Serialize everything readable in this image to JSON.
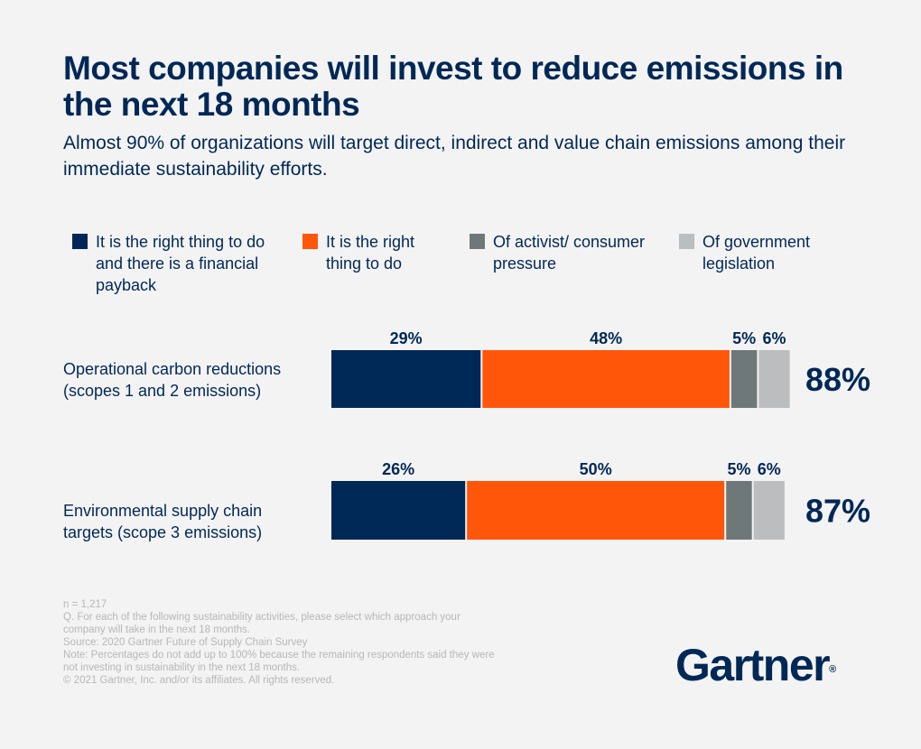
{
  "header": {
    "title": "Most companies will invest to reduce emissions in the next 18 months",
    "subtitle": "Almost 90% of organizations will target direct, indirect and value chain emissions among their immediate sustainability efforts."
  },
  "chart_data": {
    "type": "bar",
    "orientation": "horizontal",
    "stacked": true,
    "categories": [
      "Operational carbon reductions (scopes 1 and 2 emissions)",
      "Environmental supply chain targets (scope 3 emissions)"
    ],
    "series": [
      {
        "name": "It is the right thing to do and there is a financial payback",
        "color": "#002856",
        "values": [
          29,
          26
        ],
        "labels": [
          "29%",
          "26%"
        ]
      },
      {
        "name": "It is the right thing to do",
        "color": "#ff560a",
        "values": [
          48,
          50
        ],
        "labels": [
          "48%",
          "50%"
        ]
      },
      {
        "name": "Of activist/ consumer pressure",
        "color": "#6f7878",
        "values": [
          5,
          5
        ],
        "labels": [
          "5%",
          "5%"
        ]
      },
      {
        "name": "Of government legislation",
        "color": "#bcbdbe",
        "values": [
          6,
          6
        ],
        "labels": [
          "6%",
          "6%"
        ]
      }
    ],
    "totals": [
      "88%",
      "87%"
    ],
    "legend_position": "top",
    "grid": false,
    "axes_visible": false
  },
  "notes": [
    "n = 1,217",
    "Q. For each of the following sustainability activities, please select which approach your company will take in the next 18 months.",
    "Source: 2020 Gartner Future of Supply Chain Survey",
    "Note: Percentages do not add up to 100% because the remaining respondents said they were not investing in sustainability in the next 18 months.",
    "© 2021 Gartner, Inc. and/or its affiliates. All rights reserved."
  ],
  "logo": {
    "text": "Gartner",
    "mark": "®"
  }
}
